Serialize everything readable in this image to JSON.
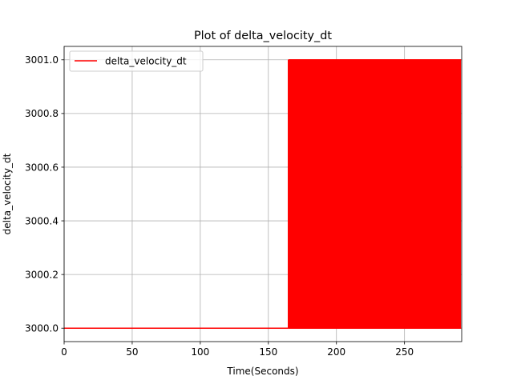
{
  "chart_data": {
    "type": "line",
    "title": "Plot of delta_velocity_dt",
    "xlabel": "Time(Seconds)",
    "ylabel": "delta_velocity_dt",
    "xlim": [
      0,
      292
    ],
    "ylim": [
      2999.95,
      3001.05
    ],
    "x_ticks": [
      0,
      50,
      100,
      150,
      200,
      250
    ],
    "x_tick_labels": [
      "0",
      "50",
      "100",
      "150",
      "200",
      "250"
    ],
    "y_ticks": [
      3000.0,
      3000.2,
      3000.4,
      3000.6,
      3000.8,
      3001.0
    ],
    "y_tick_labels": [
      "3000.0",
      "3000.2",
      "3000.4",
      "3000.6",
      "3000.8",
      "3001.0"
    ],
    "grid": true,
    "legend_position": "top-left",
    "series": [
      {
        "name": "delta_velocity_dt",
        "color": "#ff0000",
        "segments": [
          {
            "kind": "constant",
            "x_start": 0,
            "x_end": 164.7,
            "value": 3000.0
          },
          {
            "kind": "oscillating",
            "x_start": 164.7,
            "x_end": 291.5,
            "low": 3000.0,
            "high": 3001.0
          }
        ]
      }
    ]
  }
}
